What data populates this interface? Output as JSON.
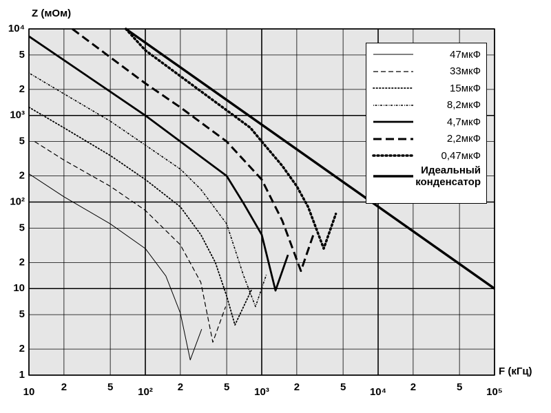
{
  "chart_data": {
    "type": "line",
    "y_label": "Z (мОм)",
    "x_label": "F (кГц)",
    "log_x": true,
    "log_y": true,
    "grid": true,
    "xlim": [
      10,
      100000
    ],
    "ylim": [
      1,
      10000
    ],
    "xticks": [
      10,
      {
        "value": 20,
        "label": "2"
      },
      {
        "value": 50,
        "label": "5"
      },
      {
        "value": 100,
        "label": "10²"
      },
      {
        "value": 200,
        "label": "2"
      },
      {
        "value": 500,
        "label": "5"
      },
      {
        "value": 1000,
        "label": "10³"
      },
      {
        "value": 2000,
        "label": "2"
      },
      {
        "value": 5000,
        "label": "5"
      },
      {
        "value": 10000,
        "label": "10⁴"
      },
      {
        "value": 20000,
        "label": "2"
      },
      {
        "value": 50000,
        "label": "5"
      },
      {
        "value": 100000,
        "label": "10⁵"
      }
    ],
    "yticks": [
      1,
      2,
      5,
      10,
      {
        "value": 20,
        "label": "2"
      },
      {
        "value": 50,
        "label": "5"
      },
      {
        "value": 100,
        "label": "10²"
      },
      {
        "value": 200,
        "label": "2"
      },
      {
        "value": 500,
        "label": "5"
      },
      {
        "value": 1000,
        "label": "10³"
      },
      {
        "value": 2000,
        "label": "2"
      },
      {
        "value": 5000,
        "label": "5"
      },
      {
        "value": 10000,
        "label": "10⁴"
      }
    ],
    "legend_position": "upper right",
    "series": [
      {
        "name": "47мкФ",
        "color": "#000000",
        "line_style": "solid",
        "line_width": 1,
        "x": [
          10,
          20,
          50,
          100,
          150,
          200,
          243,
          305
        ],
        "values": [
          212,
          115,
          56,
          29,
          14,
          5.2,
          1.5,
          3.4
        ]
      },
      {
        "name": "33мкФ",
        "color": "#000000",
        "line_style": "dashed",
        "line_width": 1.2,
        "x": [
          11.2,
          20,
          50,
          100,
          200,
          300,
          380,
          490
        ],
        "values": [
          500,
          305,
          152,
          80,
          32,
          11.8,
          2.4,
          6.2
        ]
      },
      {
        "name": "15мкФ",
        "color": "#000000",
        "line_style": "dotted",
        "line_width": 1.8,
        "x": [
          10,
          20,
          50,
          100,
          200,
          300,
          400,
          500,
          589,
          826
        ],
        "values": [
          1245,
          720,
          345,
          182,
          88,
          42,
          20,
          8.2,
          3.8,
          10
        ]
      },
      {
        "name": "8,2мкФ",
        "color": "#000000",
        "line_style": "noisy",
        "line_width": 1.6,
        "x": [
          10,
          20,
          50,
          100,
          200,
          300,
          500,
          700,
          885,
          1100
        ],
        "values": [
          3100,
          1780,
          860,
          455,
          240,
          140,
          56,
          14,
          6.2,
          14.7
        ]
      },
      {
        "name": "4,7мкФ",
        "color": "#000000",
        "line_style": "solid",
        "line_width": 2.8,
        "x": [
          10,
          100,
          200,
          500,
          700,
          1000,
          1313,
          1680
        ],
        "values": [
          8200,
          1000,
          500,
          200,
          96,
          42,
          9.5,
          24.5
        ]
      },
      {
        "name": "2,2мкФ",
        "color": "#000000",
        "line_style": "dashed",
        "line_width": 3,
        "x": [
          23.6,
          50,
          100,
          200,
          500,
          1000,
          1500,
          2170,
          2780
        ],
        "values": [
          10000,
          4700,
          2350,
          1240,
          500,
          182,
          61,
          16,
          42
        ]
      },
      {
        "name": "0,47мкФ",
        "color": "#000000",
        "line_style": "dotted",
        "line_width": 3.5,
        "x": [
          68,
          100,
          800,
          1000,
          1500,
          2000,
          2500,
          3410,
          4330
        ],
        "values": [
          10000,
          5660,
          720,
          500,
          262,
          152,
          88,
          29,
          73
        ]
      },
      {
        "name": "Идеальный конденсатор",
        "color": "#000000",
        "line_style": "solid",
        "line_width": 3.5,
        "x": [
          68,
          100000
        ],
        "values": [
          10000,
          10
        ]
      }
    ]
  }
}
